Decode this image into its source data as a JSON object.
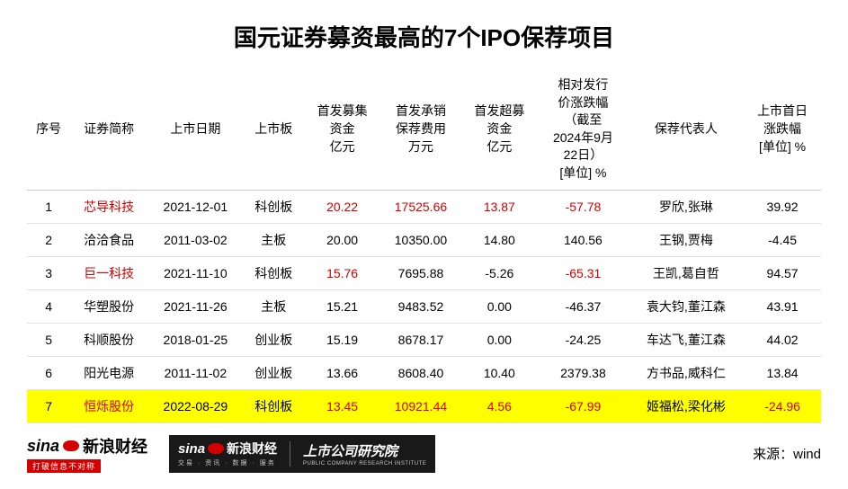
{
  "title": "国元证券募资最高的7个IPO保荐项目",
  "columns": [
    "序号",
    "证券简称",
    "上市日期",
    "上市板",
    "首发募集\n资金\n亿元",
    "首发承销\n保荐费用\n万元",
    "首发超募\n资金\n亿元",
    "相对发行\n价涨跌幅\n（截至\n2024年9月\n22日）\n[单位] %",
    "保荐代表人",
    "上市首日\n涨跌幅\n[单位] %"
  ],
  "rows": [
    {
      "idx": "1",
      "name": "芯导科技",
      "date": "2021-12-01",
      "board": "科创板",
      "fund": "20.22",
      "fee": "17525.66",
      "over": "13.87",
      "rel": "-57.78",
      "sponsor": "罗欣,张琳",
      "first": "39.92",
      "name_red": true,
      "fund_red": true,
      "fee_red": true,
      "over_red": true,
      "rel_red": true,
      "first_red": false,
      "hl": false
    },
    {
      "idx": "2",
      "name": "洽洽食品",
      "date": "2011-03-02",
      "board": "主板",
      "fund": "20.00",
      "fee": "10350.00",
      "over": "14.80",
      "rel": "140.56",
      "sponsor": "王钢,贾梅",
      "first": "-4.45",
      "name_red": false,
      "fund_red": false,
      "fee_red": false,
      "over_red": false,
      "rel_red": false,
      "first_red": false,
      "hl": false
    },
    {
      "idx": "3",
      "name": "巨一科技",
      "date": "2021-11-10",
      "board": "科创板",
      "fund": "15.76",
      "fee": "7695.88",
      "over": "-5.26",
      "rel": "-65.31",
      "sponsor": "王凯,葛自哲",
      "first": "94.57",
      "name_red": true,
      "fund_red": true,
      "fee_red": false,
      "over_red": false,
      "rel_red": true,
      "first_red": false,
      "hl": false
    },
    {
      "idx": "4",
      "name": "华塑股份",
      "date": "2021-11-26",
      "board": "主板",
      "fund": "15.21",
      "fee": "9483.52",
      "over": "0.00",
      "rel": "-46.37",
      "sponsor": "袁大钧,董江森",
      "first": "43.91",
      "name_red": false,
      "fund_red": false,
      "fee_red": false,
      "over_red": false,
      "rel_red": false,
      "first_red": false,
      "hl": false
    },
    {
      "idx": "5",
      "name": "科顺股份",
      "date": "2018-01-25",
      "board": "创业板",
      "fund": "15.19",
      "fee": "8678.17",
      "over": "0.00",
      "rel": "-24.25",
      "sponsor": "车达飞,董江森",
      "first": "44.02",
      "name_red": false,
      "fund_red": false,
      "fee_red": false,
      "over_red": false,
      "rel_red": false,
      "first_red": false,
      "hl": false
    },
    {
      "idx": "6",
      "name": "阳光电源",
      "date": "2011-11-02",
      "board": "创业板",
      "fund": "13.66",
      "fee": "8608.40",
      "over": "10.40",
      "rel": "2379.38",
      "sponsor": "方书品,威科仁",
      "first": "13.84",
      "name_red": false,
      "fund_red": false,
      "fee_red": false,
      "over_red": false,
      "rel_red": false,
      "first_red": false,
      "hl": false
    },
    {
      "idx": "7",
      "name": "恒烁股份",
      "date": "2022-08-29",
      "board": "科创板",
      "fund": "13.45",
      "fee": "10921.44",
      "over": "4.56",
      "rel": "-67.99",
      "sponsor": "姬福松,梁化彬",
      "first": "-24.96",
      "name_red": true,
      "fund_red": true,
      "fee_red": true,
      "over_red": true,
      "rel_red": true,
      "first_red": true,
      "hl": true
    }
  ],
  "footer": {
    "sina": "sina",
    "caijing": "新浪财经",
    "sub1": "打破信息不对称",
    "sub2": "交易 · 资讯 · 数据 · 服务",
    "institute_cn": "上市公司研究院",
    "institute_en": "PUBLIC COMPANY RESEARCH INSTITUTE",
    "source": "来源：wind"
  },
  "colors": {
    "red": "#d40000",
    "highlight": "#ffff00",
    "border": "#e0e0e0",
    "text": "#000000"
  }
}
